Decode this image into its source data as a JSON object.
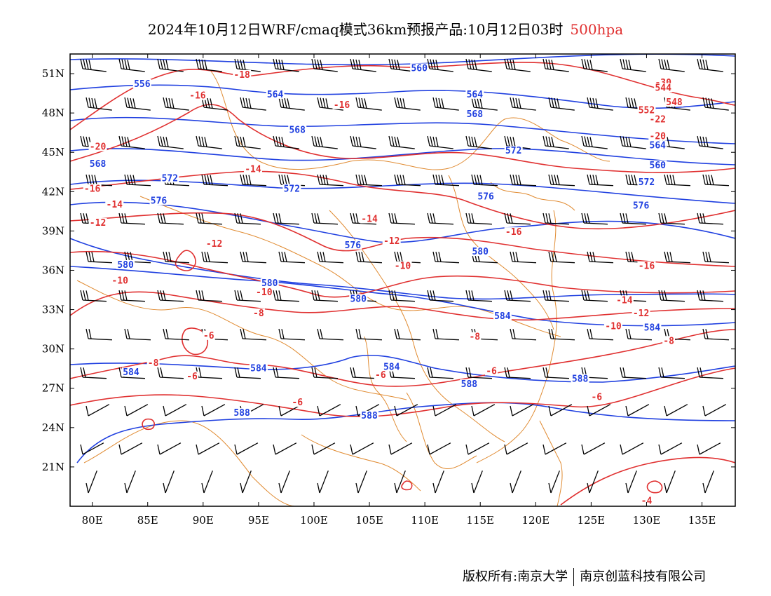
{
  "title": {
    "main": "2024年10月12日WRF/cmaq模式36km预报产品:10月12日03时",
    "level": "500hpa"
  },
  "colors": {
    "height_contour": "#2040e0",
    "temperature_contour": "#e03030",
    "boundary": "#e08a30",
    "wind_barb": "#000000"
  },
  "axes": {
    "lat_ticks": [
      "51N",
      "48N",
      "45N",
      "42N",
      "39N",
      "36N",
      "33N",
      "30N",
      "27N",
      "24N",
      "21N"
    ],
    "lat_values": [
      51,
      48,
      45,
      42,
      39,
      36,
      33,
      30,
      27,
      24,
      21
    ],
    "lon_ticks": [
      "80E",
      "85E",
      "90E",
      "95E",
      "100E",
      "105E",
      "110E",
      "115E",
      "120E",
      "125E",
      "130E",
      "135E"
    ],
    "lon_values": [
      80,
      85,
      90,
      95,
      100,
      105,
      110,
      115,
      120,
      125,
      130,
      135
    ],
    "lon_range": [
      78,
      138
    ],
    "lat_range": [
      18,
      52.5
    ]
  },
  "height_labels": [
    {
      "text": "560",
      "lon": 109.5,
      "lat": 51.3
    },
    {
      "text": "556",
      "lon": 84.5,
      "lat": 50.1
    },
    {
      "text": "564",
      "lon": 96.5,
      "lat": 49.3
    },
    {
      "text": "564",
      "lon": 114.5,
      "lat": 49.3
    },
    {
      "text": "568",
      "lon": 98.5,
      "lat": 46.6
    },
    {
      "text": "568",
      "lon": 114.5,
      "lat": 47.8
    },
    {
      "text": "568",
      "lon": 80.5,
      "lat": 44.0
    },
    {
      "text": "572",
      "lon": 87,
      "lat": 42.9
    },
    {
      "text": "572",
      "lon": 118,
      "lat": 45.0
    },
    {
      "text": "572",
      "lon": 98,
      "lat": 42.1
    },
    {
      "text": "576",
      "lon": 86,
      "lat": 41.2
    },
    {
      "text": "576",
      "lon": 115.5,
      "lat": 41.5
    },
    {
      "text": "576",
      "lon": 103.5,
      "lat": 37.8
    },
    {
      "text": "580",
      "lon": 83,
      "lat": 36.3
    },
    {
      "text": "580",
      "lon": 96,
      "lat": 34.9
    },
    {
      "text": "580",
      "lon": 104,
      "lat": 33.7
    },
    {
      "text": "580",
      "lon": 115,
      "lat": 37.3
    },
    {
      "text": "584",
      "lon": 83.5,
      "lat": 28.1
    },
    {
      "text": "584",
      "lon": 95,
      "lat": 28.4
    },
    {
      "text": "584",
      "lon": 107,
      "lat": 28.5
    },
    {
      "text": "584",
      "lon": 117,
      "lat": 32.4
    },
    {
      "text": "584",
      "lon": 130.5,
      "lat": 31.5
    },
    {
      "text": "588",
      "lon": 93.5,
      "lat": 25.0
    },
    {
      "text": "588",
      "lon": 105,
      "lat": 24.8
    },
    {
      "text": "588",
      "lon": 114,
      "lat": 27.2
    },
    {
      "text": "588",
      "lon": 124,
      "lat": 27.6
    },
    {
      "text": "564",
      "lon": 131,
      "lat": 45.4
    },
    {
      "text": "560",
      "lon": 131,
      "lat": 43.9
    },
    {
      "text": "572",
      "lon": 130,
      "lat": 42.6
    },
    {
      "text": "576",
      "lon": 129.5,
      "lat": 40.8
    }
  ],
  "temperature_labels": [
    {
      "text": "-18",
      "lon": 93.5,
      "lat": 50.8
    },
    {
      "text": "-16",
      "lon": 89.5,
      "lat": 49.2
    },
    {
      "text": "-16",
      "lon": 102.5,
      "lat": 48.5
    },
    {
      "text": "-20",
      "lon": 80.5,
      "lat": 45.3
    },
    {
      "text": "-14",
      "lon": 94.5,
      "lat": 43.6
    },
    {
      "text": "-16",
      "lon": 80,
      "lat": 42.1
    },
    {
      "text": "-14",
      "lon": 82,
      "lat": 40.9
    },
    {
      "text": "-12",
      "lon": 80.5,
      "lat": 39.5
    },
    {
      "text": "-14",
      "lon": 105,
      "lat": 39.8
    },
    {
      "text": "-12",
      "lon": 91,
      "lat": 37.9
    },
    {
      "text": "-12",
      "lon": 107,
      "lat": 38.1
    },
    {
      "text": "-16",
      "lon": 118,
      "lat": 38.8
    },
    {
      "text": "-10",
      "lon": 108,
      "lat": 36.2
    },
    {
      "text": "-10",
      "lon": 82.5,
      "lat": 35.1
    },
    {
      "text": "-10",
      "lon": 95.5,
      "lat": 34.2
    },
    {
      "text": "-8",
      "lon": 95,
      "lat": 32.6
    },
    {
      "text": "-6",
      "lon": 90.5,
      "lat": 30.9
    },
    {
      "text": "-8",
      "lon": 114.5,
      "lat": 30.8
    },
    {
      "text": "-8",
      "lon": 85.5,
      "lat": 28.8
    },
    {
      "text": "-6",
      "lon": 89,
      "lat": 27.8
    },
    {
      "text": "-6",
      "lon": 106,
      "lat": 27.9
    },
    {
      "text": "-6",
      "lon": 116,
      "lat": 28.2
    },
    {
      "text": "-6",
      "lon": 98.5,
      "lat": 25.8
    },
    {
      "text": "-6",
      "lon": 125.5,
      "lat": 26.2
    },
    {
      "text": "-16",
      "lon": 130,
      "lat": 36.2
    },
    {
      "text": "-14",
      "lon": 128,
      "lat": 33.6
    },
    {
      "text": "-12",
      "lon": 129.5,
      "lat": 32.6
    },
    {
      "text": "-10",
      "lon": 127,
      "lat": 31.6
    },
    {
      "text": "-8",
      "lon": 132,
      "lat": 30.5
    },
    {
      "text": "-20",
      "lon": 131,
      "lat": 46.1
    },
    {
      "text": "-22",
      "lon": 131,
      "lat": 47.4
    },
    {
      "text": "-4",
      "lon": 130,
      "lat": 18.3
    },
    {
      "text": "-30",
      "lon": 131.5,
      "lat": 50.2
    },
    {
      "text": "552",
      "lon": 130,
      "lat": 48.1
    },
    {
      "text": "548",
      "lon": 132.5,
      "lat": 48.7
    },
    {
      "text": "544",
      "lon": 131.5,
      "lat": 49.8
    }
  ],
  "footer": {
    "left": "版权所有:南京大学",
    "right": "南京创蓝科技有限公司"
  }
}
